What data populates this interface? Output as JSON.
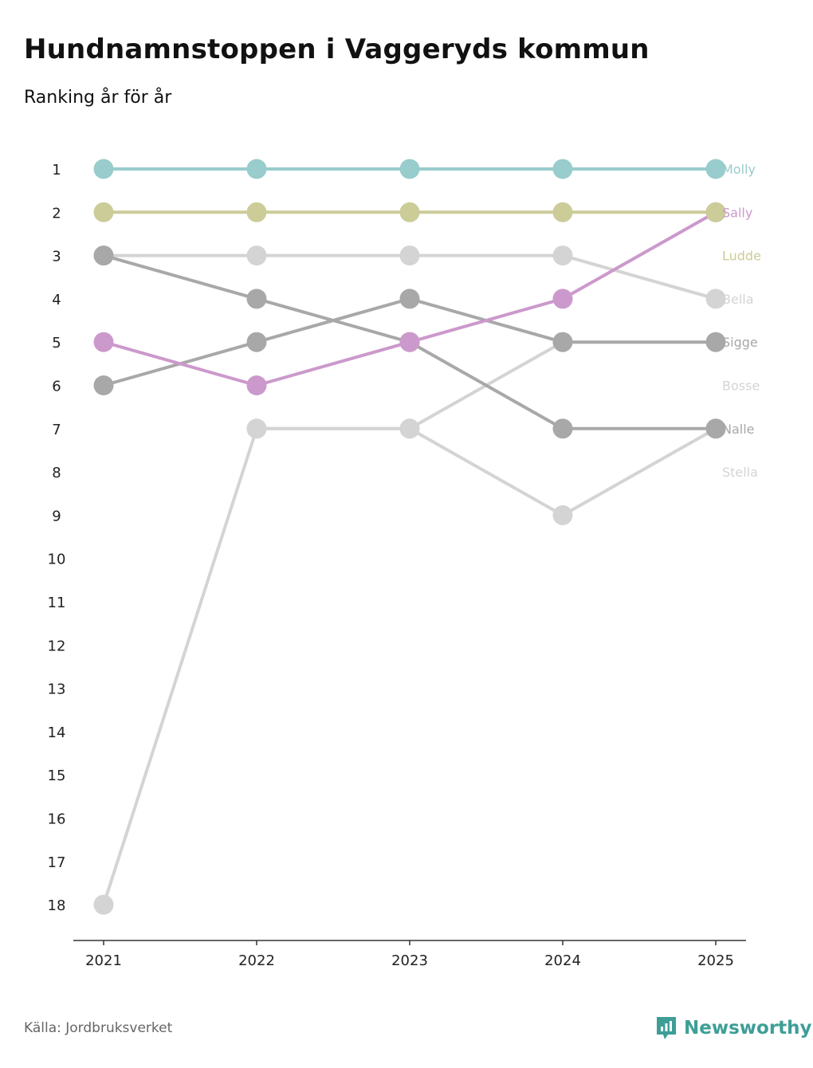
{
  "title": "Hundnamnstoppen i Vaggeryds kommun",
  "subtitle": "Ranking år för år",
  "source": "Källa: Jordbruksverket",
  "brand": {
    "name": "Newsworthy",
    "color": "#3d9e96",
    "icon": "newsworthy-logo-icon"
  },
  "chart_data": {
    "type": "line",
    "x": [
      "2021",
      "2022",
      "2023",
      "2024",
      "2025"
    ],
    "y_ticks": [
      "1",
      "2",
      "3",
      "4",
      "5",
      "6",
      "7",
      "8",
      "9",
      "10",
      "11",
      "12",
      "13",
      "14",
      "15",
      "16",
      "17",
      "18"
    ],
    "ylim": [
      1,
      18
    ],
    "y_inverted": true,
    "xlabel": "",
    "ylabel": "",
    "series": [
      {
        "name": "Stella",
        "color": "#d4d4d4",
        "values": [
          18,
          7,
          7,
          9,
          7
        ]
      },
      {
        "name": "Bosse",
        "color": "#d4d4d4",
        "values": [
          null,
          7,
          7,
          5,
          null
        ]
      },
      {
        "name": "Bella",
        "color": "#d4d4d4",
        "values": [
          3,
          3,
          3,
          3,
          4
        ]
      },
      {
        "name": "Nalle",
        "color": "#a8a8a8",
        "values": [
          3,
          4,
          5,
          7,
          7
        ]
      },
      {
        "name": "Sigge",
        "color": "#a8a8a8",
        "values": [
          6,
          5,
          4,
          5,
          5
        ]
      },
      {
        "name": "Sally",
        "color": "#cc99cc",
        "values": [
          5,
          6,
          5,
          4,
          2
        ]
      },
      {
        "name": "Ludde",
        "color": "#cccc99",
        "values": [
          2,
          2,
          2,
          2,
          2
        ]
      },
      {
        "name": "Molly",
        "color": "#99cccc",
        "values": [
          1,
          1,
          1,
          1,
          1
        ]
      }
    ],
    "end_labels": [
      {
        "name": "Molly",
        "color": "#99cccc",
        "rank": 1
      },
      {
        "name": "Sally",
        "color": "#cc99cc",
        "rank": 2
      },
      {
        "name": "Ludde",
        "color": "#cccc99",
        "rank": 3
      },
      {
        "name": "Bella",
        "color": "#d4d4d4",
        "rank": 4
      },
      {
        "name": "Sigge",
        "color": "#a8a8a8",
        "rank": 5
      },
      {
        "name": "Bosse",
        "color": "#d4d4d4",
        "rank": 6
      },
      {
        "name": "Nalle",
        "color": "#a8a8a8",
        "rank": 7
      },
      {
        "name": "Stella",
        "color": "#d4d4d4",
        "rank": 8
      }
    ]
  }
}
